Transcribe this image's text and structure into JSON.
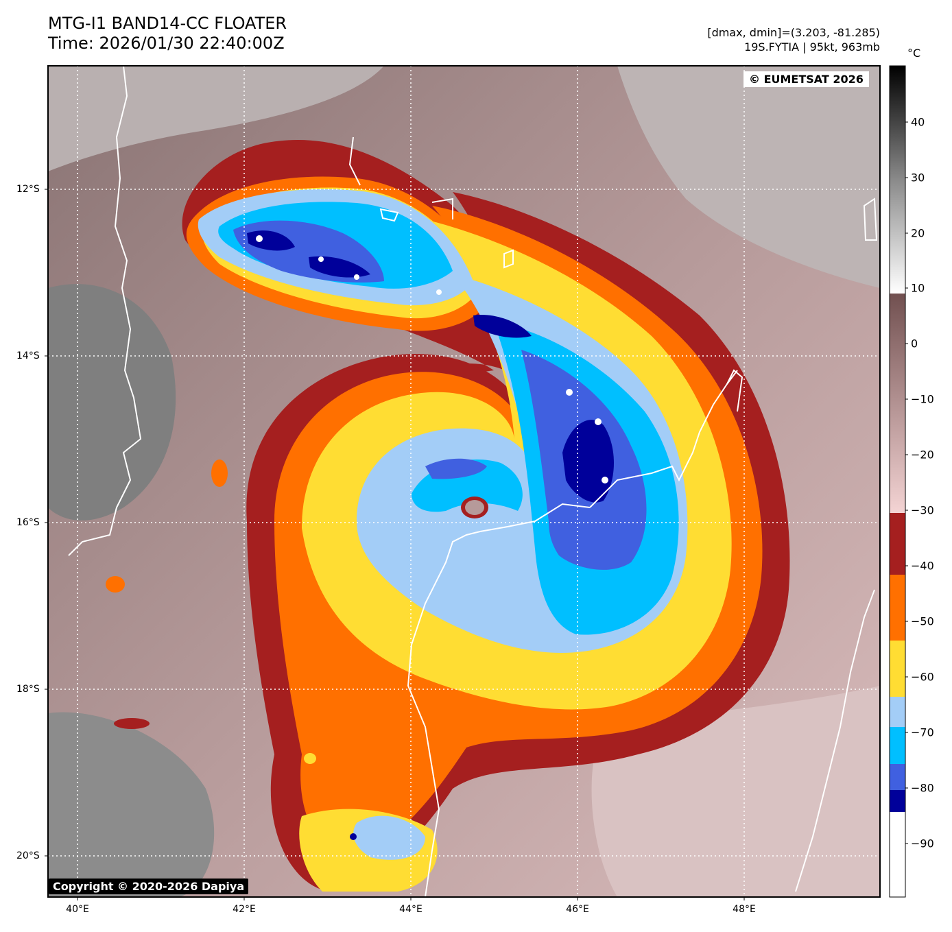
{
  "title": {
    "line1": "MTG-I1 BAND14-CC FLOATER",
    "line2": "Time: 2026/01/30 22:40:00Z"
  },
  "info": {
    "line1": "[dmax, dmin]=(3.203, -81.285)",
    "line2": "19S.FYTIA | 95kt, 963mb"
  },
  "colorbar": {
    "unit": "°C",
    "labels": [
      "40",
      "30",
      "20",
      "10",
      "0",
      "−10",
      "−20",
      "−30",
      "−40",
      "−50",
      "−60",
      "−70",
      "−80",
      "−90"
    ],
    "colors": {
      "warm_max": "#000000",
      "gray_mid": "#8a8a8a",
      "gray_light": "#ffffff",
      "brown": "#715050",
      "pink": "#f4d4d4",
      "dark_red": "#a51f1f",
      "orange": "#ff7000",
      "yellow": "#ffdd33",
      "light_blue": "#a3cdf7",
      "cyan": "#00bfff",
      "royal_blue": "#4060e0",
      "navy": "#00009a",
      "white": "#ffffff"
    }
  },
  "axes": {
    "lat_labels": [
      "12°S",
      "14°S",
      "16°S",
      "18°S",
      "20°S"
    ],
    "lon_labels": [
      "40°E",
      "42°E",
      "44°E",
      "46°E",
      "48°E"
    ]
  },
  "credits": {
    "eumetsat": "© EUMETSAT 2026",
    "dapiya": "Copyright © 2020-2026 Dapiya"
  }
}
